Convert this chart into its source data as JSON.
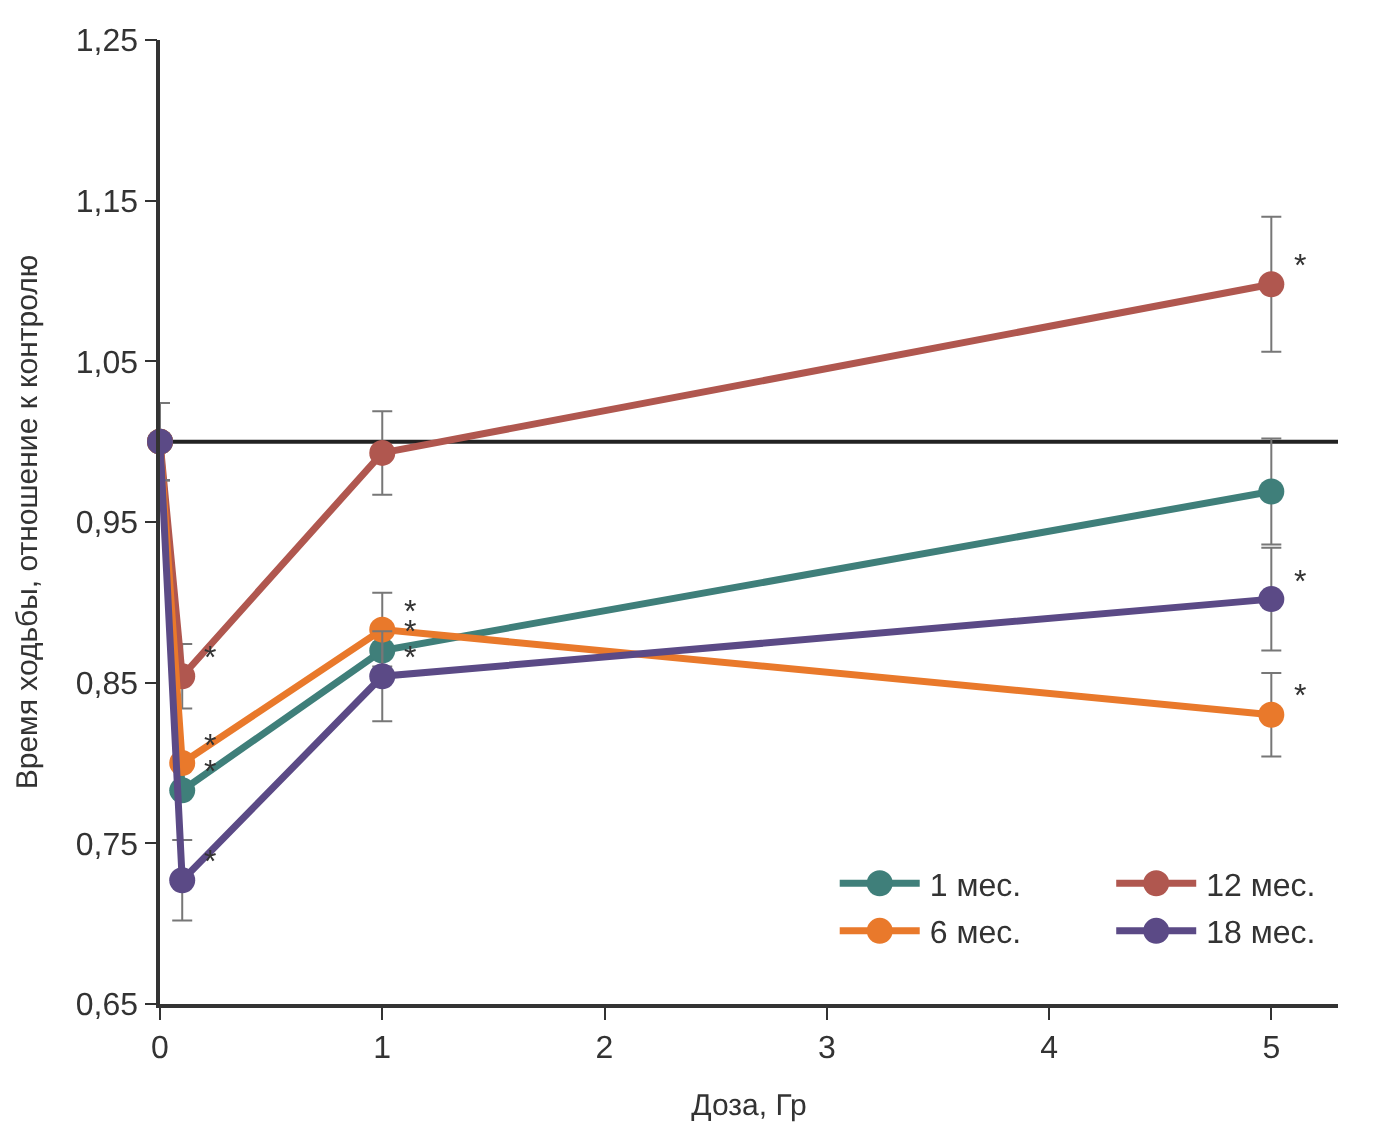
{
  "chart_data": {
    "type": "line",
    "xlabel": "Доза, Гр",
    "ylabel": "Время ходьбы, отношение к контролю",
    "x": [
      0,
      0.1,
      1,
      5
    ],
    "series": [
      {
        "name": "1 мес.",
        "color": "#3f7f7a",
        "values": [
          1.0,
          0.783,
          0.87,
          0.969
        ],
        "errors": [
          0.024,
          null,
          null,
          0.033
        ]
      },
      {
        "name": "12 мес.",
        "color": "#b0574f",
        "values": [
          1.0,
          0.854,
          0.993,
          1.098
        ],
        "errors": [
          0.024,
          0.02,
          0.026,
          0.042
        ]
      },
      {
        "name": "6 мес.",
        "color": "#e9792b",
        "values": [
          1.0,
          0.8,
          0.883,
          0.83
        ],
        "errors": [
          0.024,
          null,
          0.023,
          0.026
        ]
      },
      {
        "name": "18 мес.",
        "color": "#5b4a86",
        "values": [
          1.0,
          0.727,
          0.854,
          0.902
        ],
        "errors": [
          0.024,
          0.025,
          0.028,
          0.032
        ]
      }
    ],
    "xlim": [
      0,
      5.3
    ],
    "xticks": [
      0,
      1,
      2,
      3,
      4,
      5
    ],
    "ylim": [
      0.65,
      1.25
    ],
    "yticks": [
      {
        "value": 0.65,
        "label": "0,65"
      },
      {
        "value": 0.75,
        "label": "0,75"
      },
      {
        "value": 0.85,
        "label": "0,85"
      },
      {
        "value": 0.95,
        "label": "0,95"
      },
      {
        "value": 1.05,
        "label": "1,05"
      },
      {
        "value": 1.15,
        "label": "1,15"
      },
      {
        "value": 1.25,
        "label": "1,25"
      }
    ],
    "ref_lines": [
      {
        "axis": "y",
        "value": 1.0,
        "color": "#222222"
      }
    ],
    "annotations": [
      {
        "text": "*",
        "x": 0.1,
        "y": 0.854
      },
      {
        "text": "*",
        "x": 0.1,
        "y": 0.8
      },
      {
        "text": "*",
        "x": 0.1,
        "y": 0.783
      },
      {
        "text": "*",
        "x": 0.1,
        "y": 0.727
      },
      {
        "text": "*",
        "x": 1,
        "y": 0.883
      },
      {
        "text": "*",
        "x": 1,
        "y": 0.87
      },
      {
        "text": "*",
        "x": 1,
        "y": 0.854
      },
      {
        "text": "*",
        "x": 5,
        "y": 1.098
      },
      {
        "text": "*",
        "x": 5,
        "y": 0.902
      },
      {
        "text": "*",
        "x": 5,
        "y": 0.83
      }
    ],
    "grid": false,
    "legend": "bottom right",
    "marker": "circle",
    "line_style": "solid"
  }
}
